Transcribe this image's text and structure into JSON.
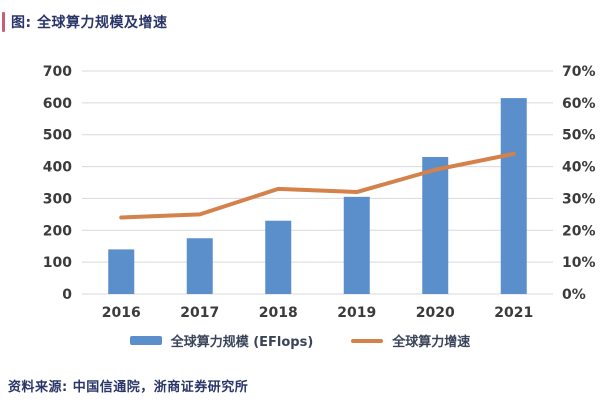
{
  "header": {
    "title": "图: 全球算力规模及增速",
    "accent_color": "#C55F7C"
  },
  "footer": {
    "source": "资料来源: 中国信通院，浙商证券研究所"
  },
  "chart_data": {
    "type": "bar",
    "categories": [
      "2016",
      "2017",
      "2018",
      "2019",
      "2020",
      "2021"
    ],
    "series": [
      {
        "name": "全球算力规模 (EFlops)",
        "type": "bar",
        "axis": "left",
        "color": "#5B8FCB",
        "values": [
          140,
          175,
          230,
          305,
          430,
          615
        ]
      },
      {
        "name": "全球算力增速",
        "type": "line",
        "axis": "right",
        "color": "#D4814B",
        "values": [
          24,
          25,
          33,
          32,
          39,
          44
        ]
      }
    ],
    "left_axis": {
      "min": 0,
      "max": 700,
      "step": 100,
      "ticks": [
        "700",
        "600",
        "500",
        "400",
        "300",
        "200",
        "100",
        "0"
      ]
    },
    "right_axis": {
      "min": 0,
      "max": 70,
      "step": 10,
      "ticks": [
        "70%",
        "60%",
        "50%",
        "40%",
        "30%",
        "20%",
        "10%",
        "0%"
      ]
    },
    "grid": true,
    "legend_position": "bottom",
    "gridline_color": "#D9D9D9",
    "tick_color": "#3B3B3B"
  }
}
